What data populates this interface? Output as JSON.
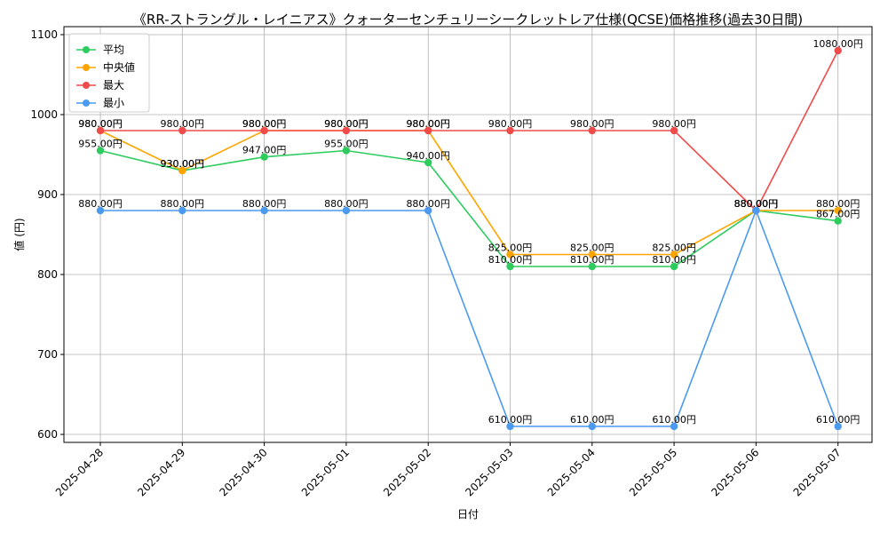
{
  "chart_data": {
    "type": "line",
    "title": "《RR-ストラングル・レイニアス》クォーターセンチュリーシークレットレア仕様(QCSE)価格推移(過去30日間)",
    "xlabel": "日付",
    "ylabel": "値 (円)",
    "ylim": [
      590,
      1110
    ],
    "yticks": [
      600,
      700,
      800,
      900,
      1000,
      1100
    ],
    "grid": true,
    "legend_position": "top-left",
    "value_suffix": "円",
    "categories": [
      "2025-04-28",
      "2025-04-29",
      "2025-04-30",
      "2025-05-01",
      "2025-05-02",
      "2025-05-03",
      "2025-05-04",
      "2025-05-05",
      "2025-05-06",
      "2025-05-07"
    ],
    "series": [
      {
        "name": "平均",
        "color": "#2ecc5f",
        "values": [
          955,
          930,
          947,
          955,
          940,
          810,
          810,
          810,
          880,
          867
        ]
      },
      {
        "name": "中央値",
        "color": "#ffa500",
        "values": [
          980,
          930,
          980,
          980,
          980,
          825,
          825,
          825,
          880,
          880
        ]
      },
      {
        "name": "最大",
        "color": "#f04b4b",
        "values": [
          980,
          980,
          980,
          980,
          980,
          980,
          980,
          980,
          880,
          1080
        ]
      },
      {
        "name": "最小",
        "color": "#4a9af0",
        "values": [
          880,
          880,
          880,
          880,
          880,
          610,
          610,
          610,
          880,
          610
        ]
      }
    ]
  }
}
